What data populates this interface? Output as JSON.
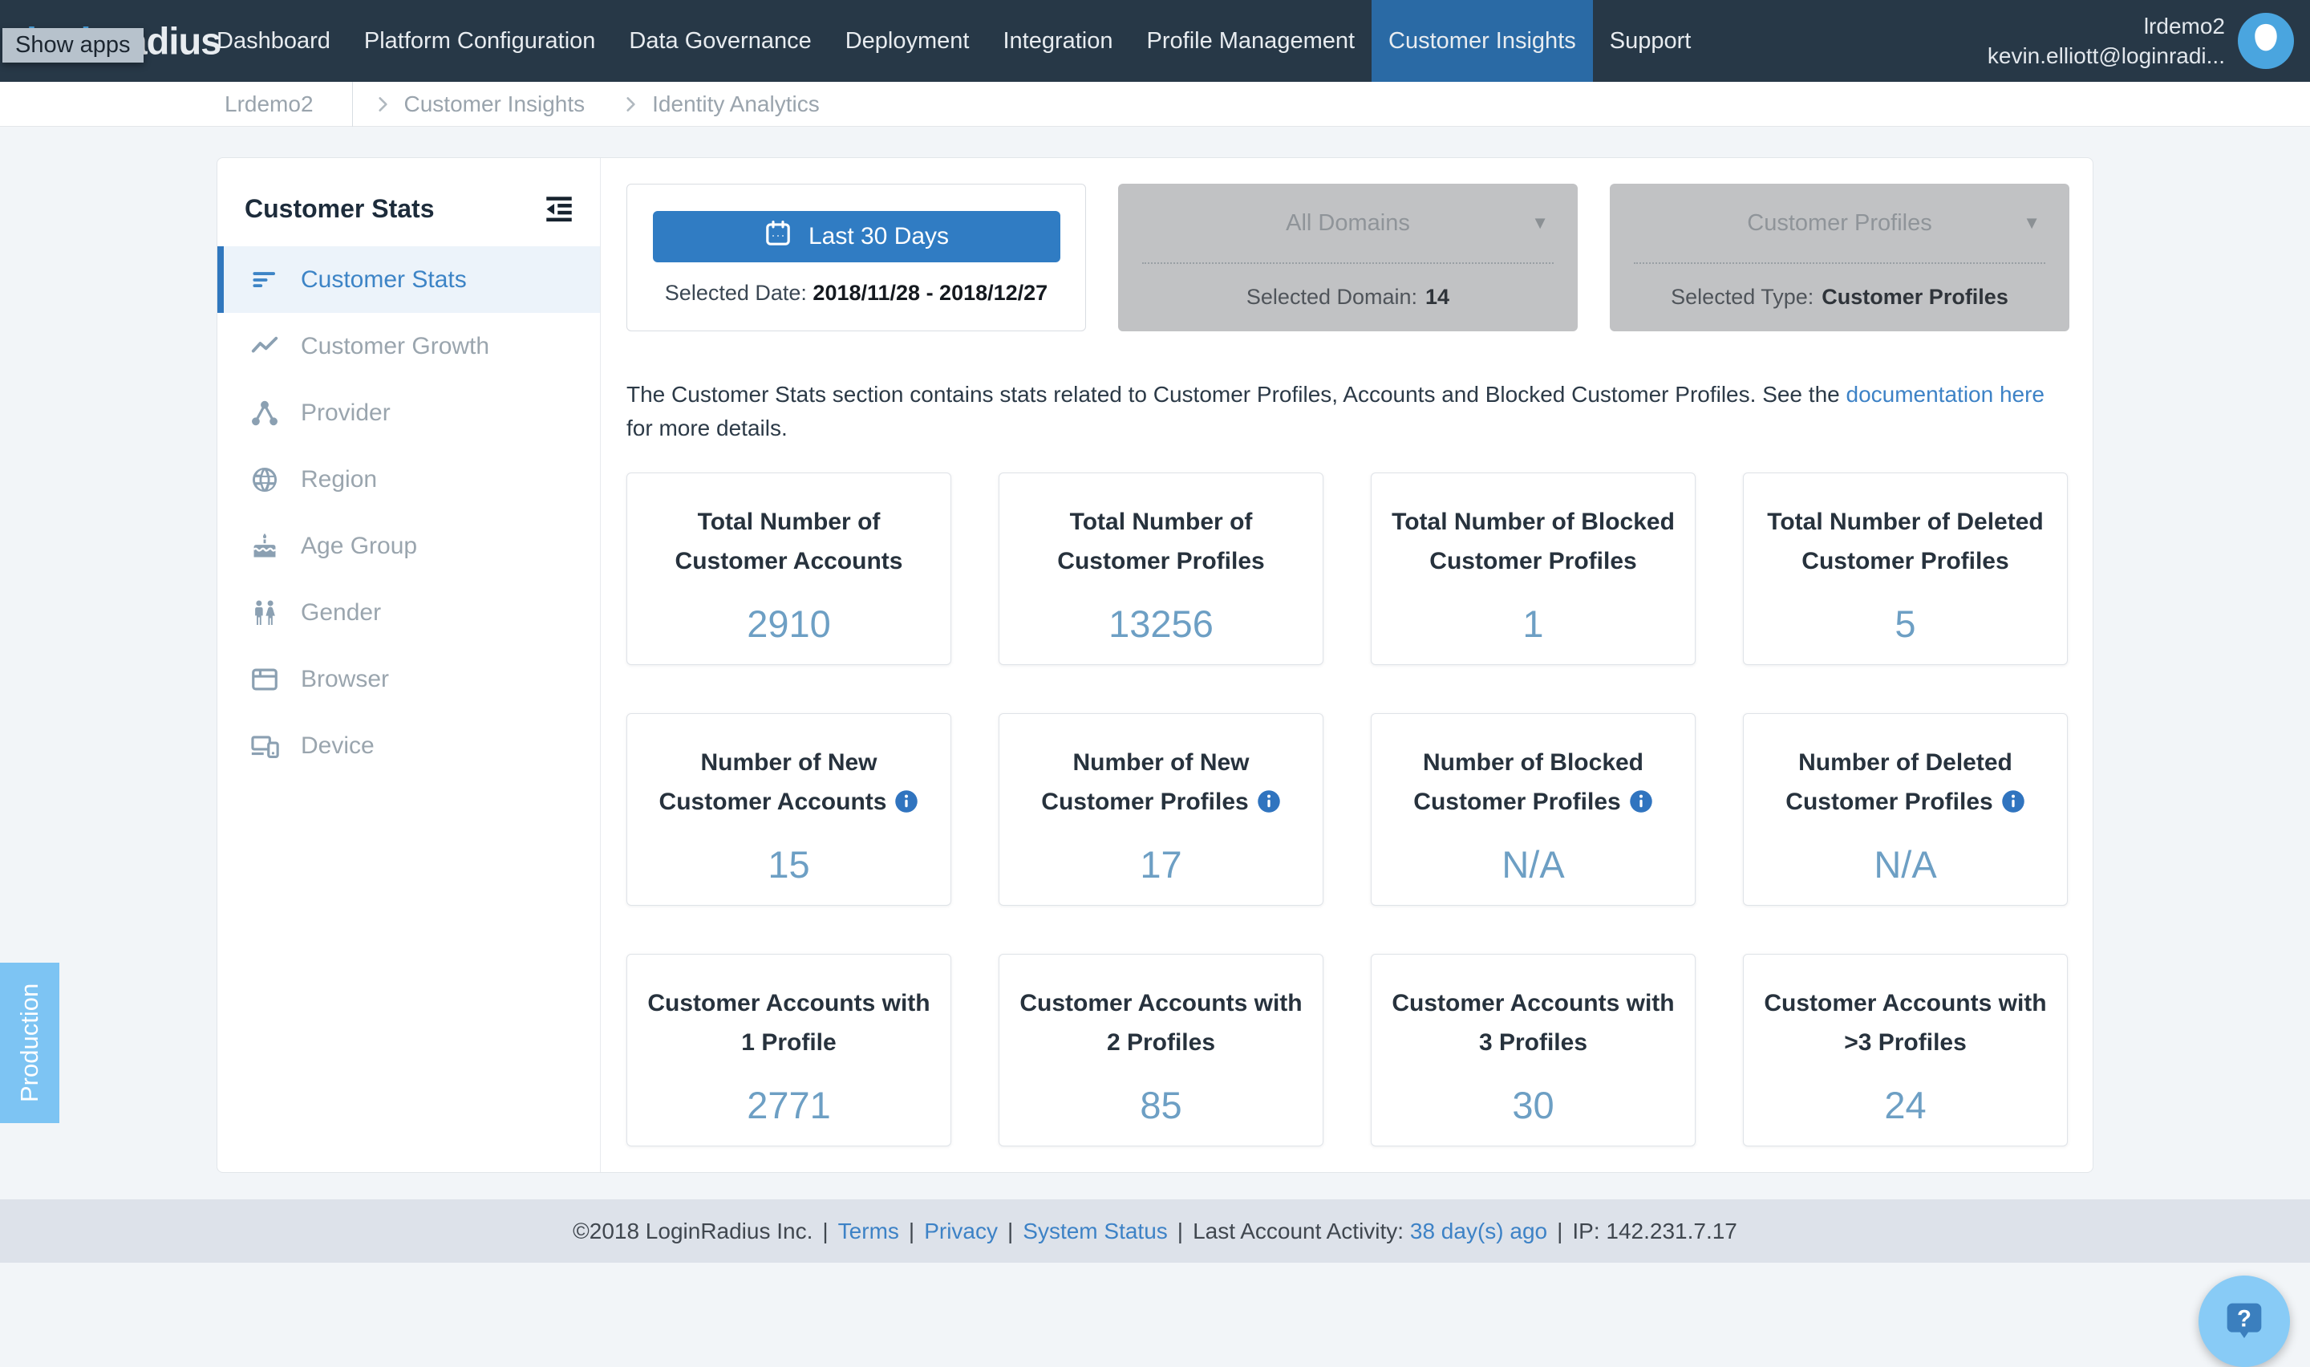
{
  "nav": {
    "logo_login": "login",
    "logo_radius": "radius",
    "tooltip": "Show apps",
    "items": [
      {
        "label": "Dashboard",
        "active": false
      },
      {
        "label": "Platform Configuration",
        "active": false
      },
      {
        "label": "Data Governance",
        "active": false
      },
      {
        "label": "Deployment",
        "active": false
      },
      {
        "label": "Integration",
        "active": false
      },
      {
        "label": "Profile Management",
        "active": false
      },
      {
        "label": "Customer Insights",
        "active": true
      },
      {
        "label": "Support",
        "active": false
      }
    ],
    "user_org": "lrdemo2",
    "user_email": "kevin.elliott@loginradi..."
  },
  "breadcrumb": {
    "app": "Lrdemo2",
    "items": [
      "Customer Insights",
      "Identity Analytics"
    ]
  },
  "env_badge": "Production",
  "sidebar": {
    "title": "Customer Stats",
    "collapse_icon": "indent-collapse-icon",
    "items": [
      {
        "label": "Customer Stats",
        "icon": "stats",
        "active": true
      },
      {
        "label": "Customer Growth",
        "icon": "growth",
        "active": false
      },
      {
        "label": "Provider",
        "icon": "provider",
        "active": false
      },
      {
        "label": "Region",
        "icon": "region",
        "active": false
      },
      {
        "label": "Age Group",
        "icon": "age",
        "active": false
      },
      {
        "label": "Gender",
        "icon": "gender",
        "active": false
      },
      {
        "label": "Browser",
        "icon": "browser",
        "active": false
      },
      {
        "label": "Device",
        "icon": "device",
        "active": false
      }
    ]
  },
  "filters": {
    "date": {
      "button_label": "Last 30 Days",
      "button_icon": "calendar-icon",
      "selected_label": "Selected Date:",
      "selected_value": "2018/11/28 - 2018/12/27"
    },
    "domain": {
      "dropdown_label": "All Domains",
      "selected_label": "Selected Domain:",
      "selected_value": "14"
    },
    "type": {
      "dropdown_label": "Customer Profiles",
      "selected_label": "Selected Type:",
      "selected_value": "Customer Profiles"
    }
  },
  "description": {
    "before": "The Customer Stats section contains stats related to Customer Profiles, Accounts and Blocked Customer Profiles. See the ",
    "link": "documentation here",
    "after": " for more details."
  },
  "stats": {
    "cards": [
      {
        "line1": "Total Number of",
        "line2": "Customer Accounts",
        "value": "2910",
        "info": false
      },
      {
        "line1": "Total Number of",
        "line2": "Customer Profiles",
        "value": "13256",
        "info": false
      },
      {
        "line1": "Total Number of Blocked",
        "line2": "Customer Profiles",
        "value": "1",
        "info": false
      },
      {
        "line1": "Total Number of Deleted",
        "line2": "Customer Profiles",
        "value": "5",
        "info": false
      },
      {
        "line1": "Number of New",
        "line2": "Customer Accounts",
        "value": "15",
        "info": true
      },
      {
        "line1": "Number of New",
        "line2": "Customer Profiles",
        "value": "17",
        "info": true
      },
      {
        "line1": "Number of Blocked",
        "line2": "Customer Profiles",
        "value": "N/A",
        "info": true
      },
      {
        "line1": "Number of Deleted",
        "line2": "Customer Profiles",
        "value": "N/A",
        "info": true
      },
      {
        "line1": "Customer Accounts with",
        "line2": "1 Profile",
        "value": "2771",
        "info": false
      },
      {
        "line1": "Customer Accounts with",
        "line2": "2 Profiles",
        "value": "85",
        "info": false
      },
      {
        "line1": "Customer Accounts with",
        "line2": "3 Profiles",
        "value": "30",
        "info": false
      },
      {
        "line1": "Customer Accounts with",
        "line2": ">3 Profiles",
        "value": "24",
        "info": false
      }
    ]
  },
  "footer": {
    "copyright": "©2018 LoginRadius Inc.",
    "sep": "|",
    "links": [
      "Terms",
      "Privacy",
      "System Status"
    ],
    "activity_label": "Last Account Activity:",
    "activity_link": "38 day(s) ago",
    "ip_text": "IP: 142.231.7.17"
  },
  "colors": {
    "navbar_bg": "#273847",
    "active_tab": "#2a6aa5",
    "primary_button": "#307cc3",
    "link_blue": "#3d82c6",
    "stat_value_blue": "#6d9fc4",
    "active_item_blue": "#3077be",
    "env_badge_blue": "#7dc4f3",
    "help_fab_blue": "#88cbf6",
    "disabled_panel_gray": "#c1c2c4",
    "footer_bg": "#dde2ea",
    "page_bg": "#f2f5f8"
  }
}
